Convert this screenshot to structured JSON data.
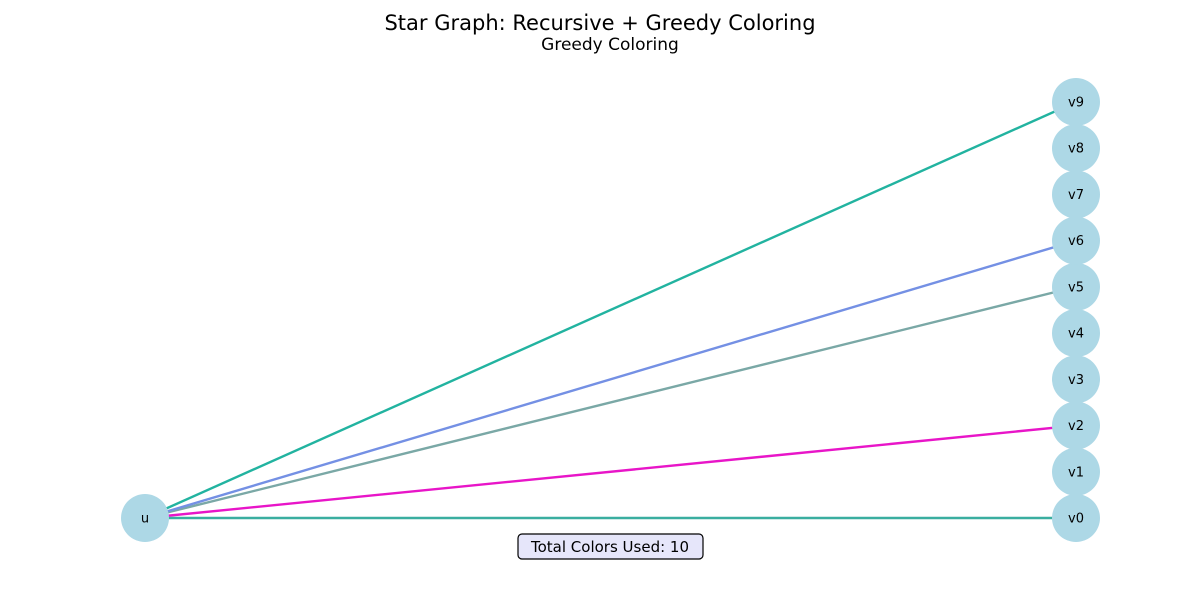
{
  "figure": {
    "title": "Star Graph: Recursive + Greedy Coloring",
    "subtitle": "Greedy Coloring"
  },
  "graph": {
    "center": {
      "id": "u",
      "label": "u"
    },
    "leaves": [
      {
        "id": "v0",
        "label": "v0"
      },
      {
        "id": "v1",
        "label": "v1"
      },
      {
        "id": "v2",
        "label": "v2"
      },
      {
        "id": "v3",
        "label": "v3"
      },
      {
        "id": "v4",
        "label": "v4"
      },
      {
        "id": "v5",
        "label": "v5"
      },
      {
        "id": "v6",
        "label": "v6"
      },
      {
        "id": "v7",
        "label": "v7"
      },
      {
        "id": "v8",
        "label": "v8"
      },
      {
        "id": "v9",
        "label": "v9"
      }
    ],
    "edges": [
      {
        "from": "u",
        "to": "v0",
        "color": "#3aaea0"
      },
      {
        "from": "u",
        "to": "v2",
        "color": "#e815c8"
      },
      {
        "from": "u",
        "to": "v5",
        "color": "#7aa8a6"
      },
      {
        "from": "u",
        "to": "v6",
        "color": "#7490e4"
      },
      {
        "from": "u",
        "to": "v9",
        "color": "#22b3a0"
      }
    ],
    "node_color": "#add8e6"
  },
  "info_box": {
    "text": "Total Colors Used: 10",
    "background": "#e6e6fa",
    "border": "#000000"
  }
}
